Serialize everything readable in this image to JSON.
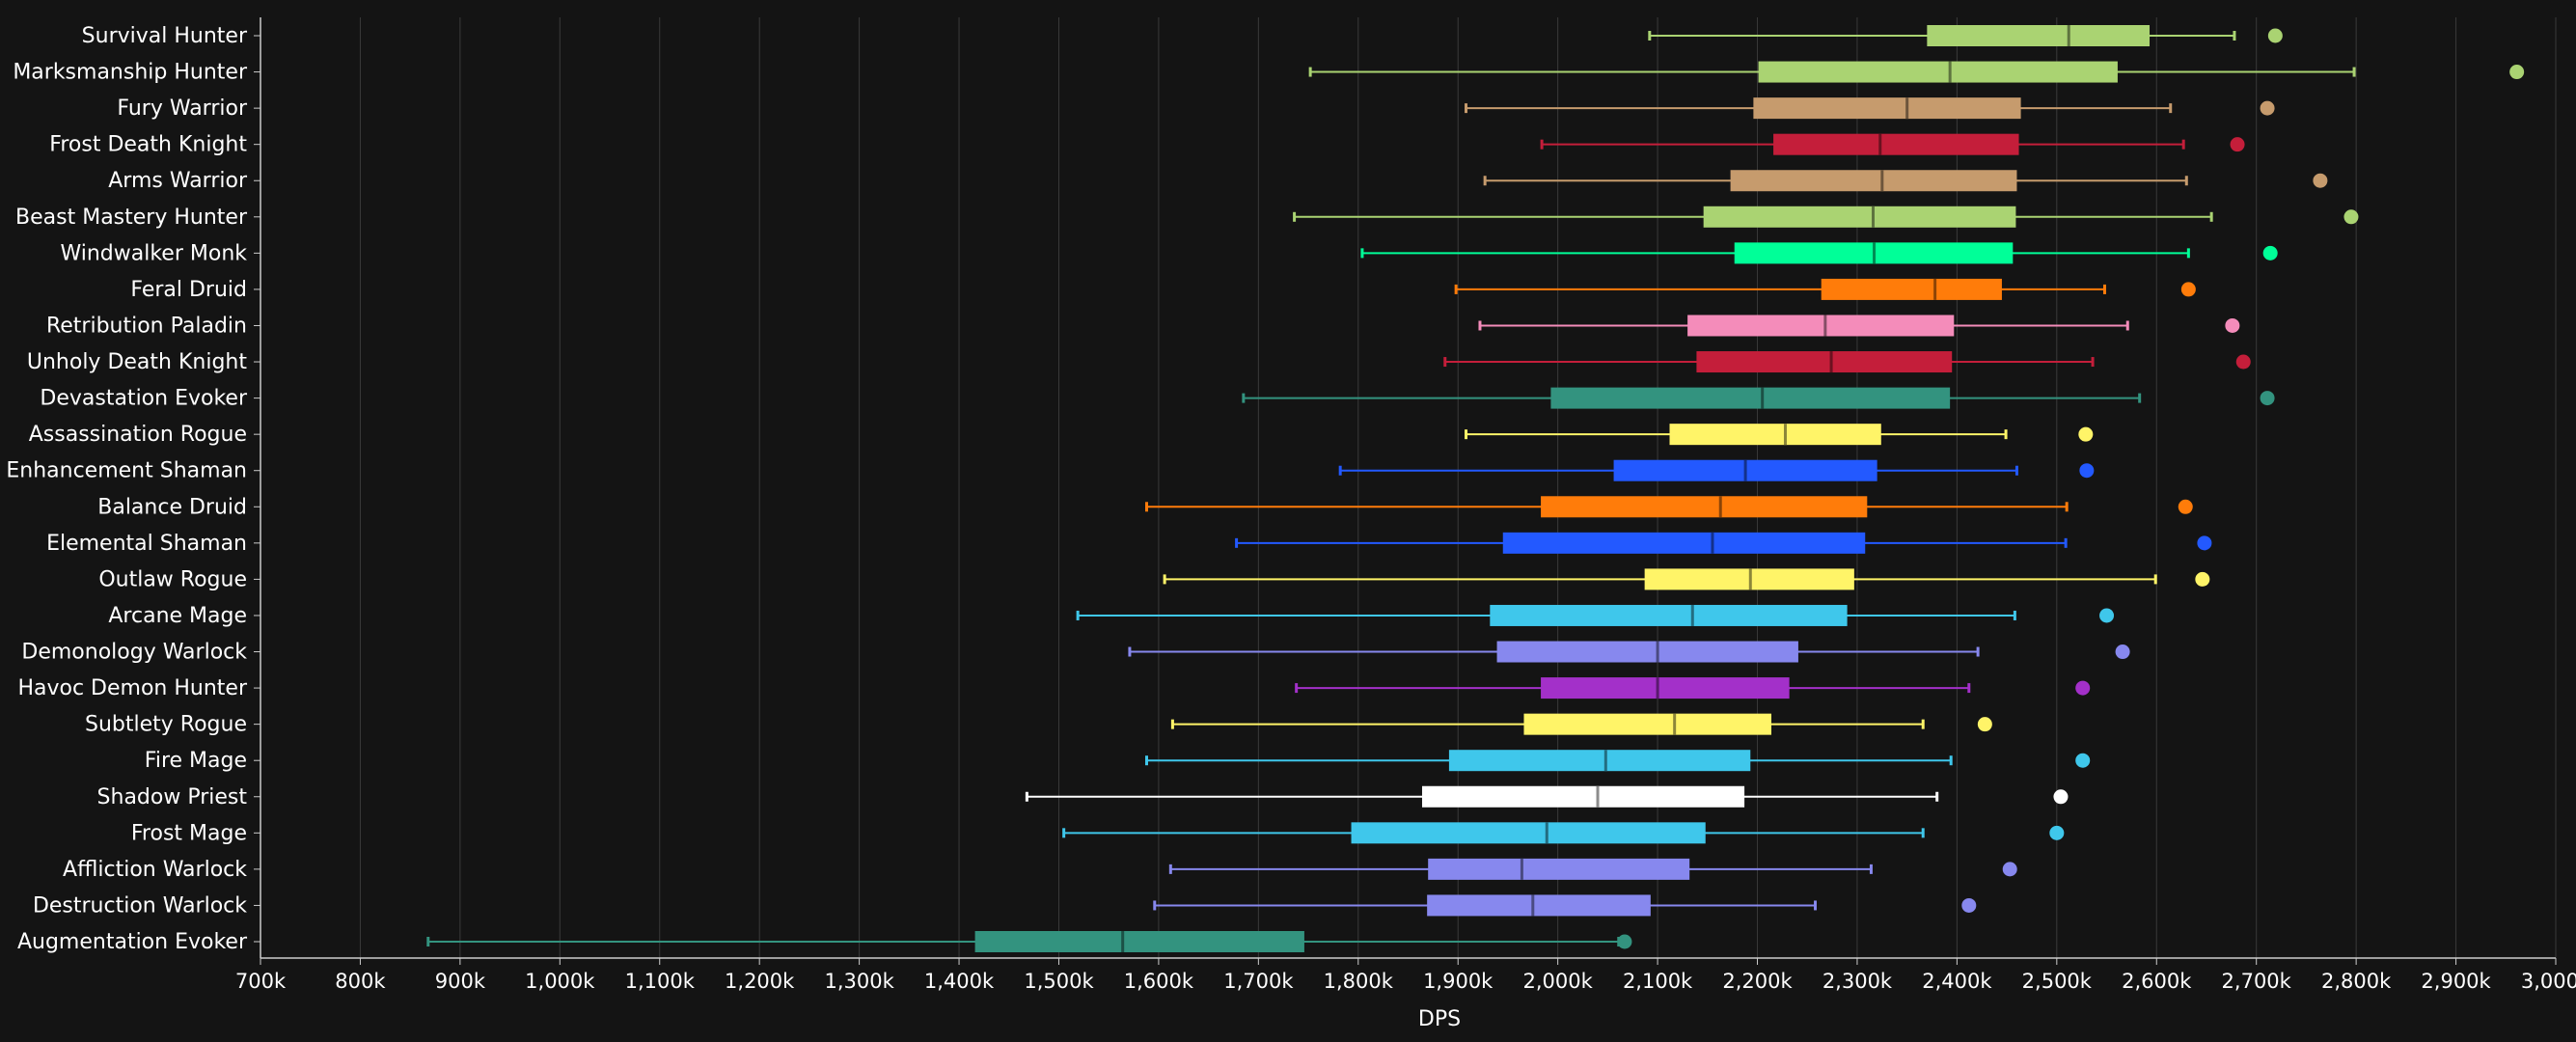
{
  "chart_data": {
    "type": "boxplot",
    "orientation": "horizontal",
    "xlabel": "DPS",
    "xlim": [
      700000,
      3000000
    ],
    "x_ticks": [
      700000,
      800000,
      900000,
      1000000,
      1100000,
      1200000,
      1300000,
      1400000,
      1500000,
      1600000,
      1700000,
      1800000,
      1900000,
      2000000,
      2100000,
      2200000,
      2300000,
      2400000,
      2500000,
      2600000,
      2700000,
      2800000,
      2900000,
      3000000
    ],
    "x_tick_labels": [
      "700k",
      "800k",
      "900k",
      "1,000k",
      "1,100k",
      "1,200k",
      "1,300k",
      "1,400k",
      "1,500k",
      "1,600k",
      "1,700k",
      "1,800k",
      "1,900k",
      "2,000k",
      "2,100k",
      "2,200k",
      "2,300k",
      "2,400k",
      "2,500k",
      "2,600k",
      "2,700k",
      "2,800k",
      "2,900k",
      "3,000k"
    ],
    "grid": "vertical",
    "series": [
      {
        "name": "Survival Hunter",
        "color": "#AAD372",
        "whisker_low": 2092000,
        "q1": 2370000,
        "median": 2512000,
        "q3": 2593000,
        "whisker_high": 2678000,
        "outlier": 2719000
      },
      {
        "name": "Marksmanship Hunter",
        "color": "#AAD372",
        "whisker_low": 1752000,
        "q1": 2201000,
        "median": 2393000,
        "q3": 2561000,
        "whisker_high": 2798000,
        "outlier": 2961000
      },
      {
        "name": "Fury Warrior",
        "color": "#C69B6D",
        "whisker_low": 1908000,
        "q1": 2196000,
        "median": 2350000,
        "q3": 2464000,
        "whisker_high": 2614000,
        "outlier": 2711000
      },
      {
        "name": "Frost Death Knight",
        "color": "#C41E3A",
        "whisker_low": 1984000,
        "q1": 2216000,
        "median": 2323000,
        "q3": 2462000,
        "whisker_high": 2627000,
        "outlier": 2681000
      },
      {
        "name": "Arms Warrior",
        "color": "#C69B6D",
        "whisker_low": 1927000,
        "q1": 2173000,
        "median": 2325000,
        "q3": 2460000,
        "whisker_high": 2630000,
        "outlier": 2764000
      },
      {
        "name": "Beast Mastery Hunter",
        "color": "#AAD372",
        "whisker_low": 1736000,
        "q1": 2146000,
        "median": 2316000,
        "q3": 2459000,
        "whisker_high": 2655000,
        "outlier": 2795000
      },
      {
        "name": "Windwalker Monk",
        "color": "#00FF98",
        "whisker_low": 1804000,
        "q1": 2177000,
        "median": 2317000,
        "q3": 2456000,
        "whisker_high": 2632000,
        "outlier": 2714000
      },
      {
        "name": "Feral Druid",
        "color": "#FF7C0A",
        "whisker_low": 1898000,
        "q1": 2264000,
        "median": 2378000,
        "q3": 2445000,
        "whisker_high": 2548000,
        "outlier": 2632000
      },
      {
        "name": "Retribution Paladin",
        "color": "#F48CBA",
        "whisker_low": 1922000,
        "q1": 2130000,
        "median": 2268000,
        "q3": 2397000,
        "whisker_high": 2571000,
        "outlier": 2676000
      },
      {
        "name": "Unholy Death Knight",
        "color": "#C41E3A",
        "whisker_low": 1887000,
        "q1": 2139000,
        "median": 2274000,
        "q3": 2395000,
        "whisker_high": 2536000,
        "outlier": 2687000
      },
      {
        "name": "Devastation Evoker",
        "color": "#33937F",
        "whisker_low": 1685000,
        "q1": 1993000,
        "median": 2205000,
        "q3": 2393000,
        "whisker_high": 2583000,
        "outlier": 2711000
      },
      {
        "name": "Assassination Rogue",
        "color": "#FFF468",
        "whisker_low": 1908000,
        "q1": 2112000,
        "median": 2228000,
        "q3": 2324000,
        "whisker_high": 2449000,
        "outlier": 2529000
      },
      {
        "name": "Enhancement Shaman",
        "color": "#2359FF",
        "whisker_low": 1782000,
        "q1": 2056000,
        "median": 2188000,
        "q3": 2320000,
        "whisker_high": 2460000,
        "outlier": 2530000
      },
      {
        "name": "Balance Druid",
        "color": "#FF7C0A",
        "whisker_low": 1588000,
        "q1": 1983000,
        "median": 2163000,
        "q3": 2310000,
        "whisker_high": 2510000,
        "outlier": 2629000
      },
      {
        "name": "Elemental Shaman",
        "color": "#2359FF",
        "whisker_low": 1678000,
        "q1": 1945000,
        "median": 2155000,
        "q3": 2308000,
        "whisker_high": 2509000,
        "outlier": 2648000
      },
      {
        "name": "Outlaw Rogue",
        "color": "#FFF468",
        "whisker_low": 1606000,
        "q1": 2087000,
        "median": 2193000,
        "q3": 2297000,
        "whisker_high": 2599000,
        "outlier": 2646000
      },
      {
        "name": "Arcane Mage",
        "color": "#3FC7EB",
        "whisker_low": 1519000,
        "q1": 1932000,
        "median": 2135000,
        "q3": 2290000,
        "whisker_high": 2458000,
        "outlier": 2550000
      },
      {
        "name": "Demonology Warlock",
        "color": "#8788EE",
        "whisker_low": 1571000,
        "q1": 1939000,
        "median": 2100000,
        "q3": 2241000,
        "whisker_high": 2421000,
        "outlier": 2566000
      },
      {
        "name": "Havoc Demon Hunter",
        "color": "#A330C9",
        "whisker_low": 1738000,
        "q1": 1983000,
        "median": 2100000,
        "q3": 2232000,
        "whisker_high": 2412000,
        "outlier": 2526000
      },
      {
        "name": "Subtlety Rogue",
        "color": "#FFF468",
        "whisker_low": 1614000,
        "q1": 1966000,
        "median": 2117000,
        "q3": 2214000,
        "whisker_high": 2366000,
        "outlier": 2428000
      },
      {
        "name": "Fire Mage",
        "color": "#3FC7EB",
        "whisker_low": 1588000,
        "q1": 1891000,
        "median": 2048000,
        "q3": 2193000,
        "whisker_high": 2394000,
        "outlier": 2526000
      },
      {
        "name": "Shadow Priest",
        "color": "#FFFFFF",
        "whisker_low": 1468000,
        "q1": 1864000,
        "median": 2040000,
        "q3": 2187000,
        "whisker_high": 2380000,
        "outlier": 2504000
      },
      {
        "name": "Frost Mage",
        "color": "#3FC7EB",
        "whisker_low": 1505000,
        "q1": 1793000,
        "median": 1989000,
        "q3": 2148000,
        "whisker_high": 2366000,
        "outlier": 2500000
      },
      {
        "name": "Affliction Warlock",
        "color": "#8788EE",
        "whisker_low": 1612000,
        "q1": 1870000,
        "median": 1964000,
        "q3": 2132000,
        "whisker_high": 2314000,
        "outlier": 2453000
      },
      {
        "name": "Destruction Warlock",
        "color": "#8788EE",
        "whisker_low": 1596000,
        "q1": 1869000,
        "median": 1975000,
        "q3": 2093000,
        "whisker_high": 2258000,
        "outlier": 2412000
      },
      {
        "name": "Augmentation Evoker",
        "color": "#33937F",
        "whisker_low": 868000,
        "q1": 1416000,
        "median": 1564000,
        "q3": 1746000,
        "whisker_high": 2061000,
        "outlier": 2067000
      }
    ]
  }
}
